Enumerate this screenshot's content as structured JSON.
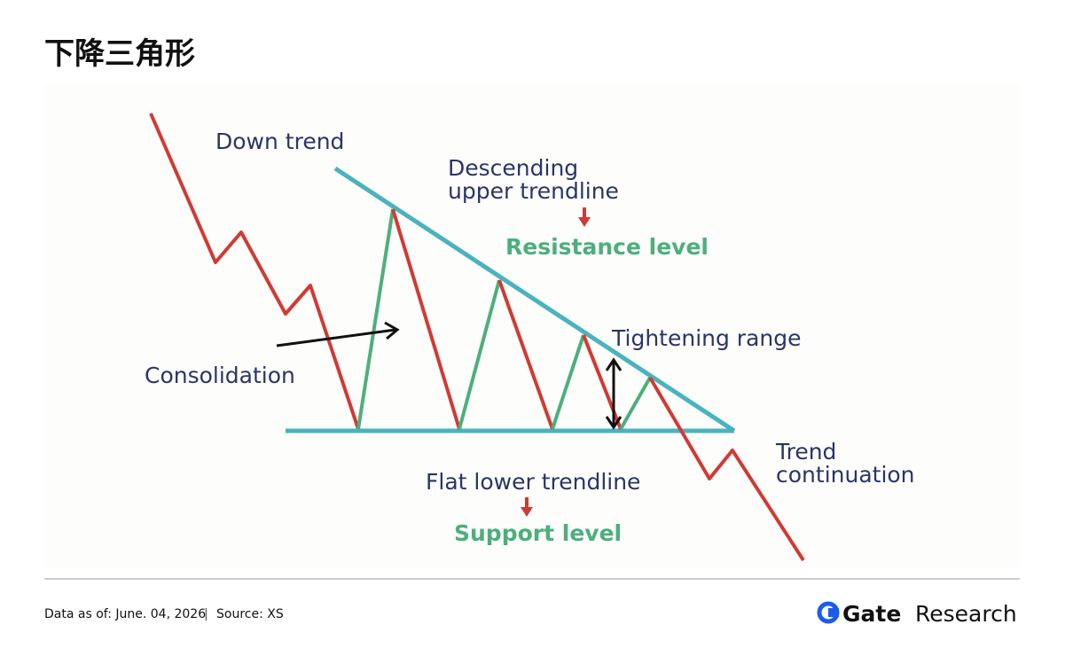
{
  "header": {
    "title": "下降三角形"
  },
  "diagram": {
    "down_trend": "Down trend",
    "upper_trendline": [
      "Descending",
      "upper trendline"
    ],
    "resistance": "Resistance level",
    "tightening": "Tightening range",
    "consolidation": "Consolidation",
    "continuation": [
      "Trend",
      "continuation"
    ],
    "lower_trendline": "Flat lower trendline",
    "support": "Support level"
  },
  "footer": {
    "date": "Data as of: June. 04, 2026",
    "separator": "|",
    "source": "Source:  XS",
    "brand": "Gate",
    "brand_suffix": "Research"
  }
}
